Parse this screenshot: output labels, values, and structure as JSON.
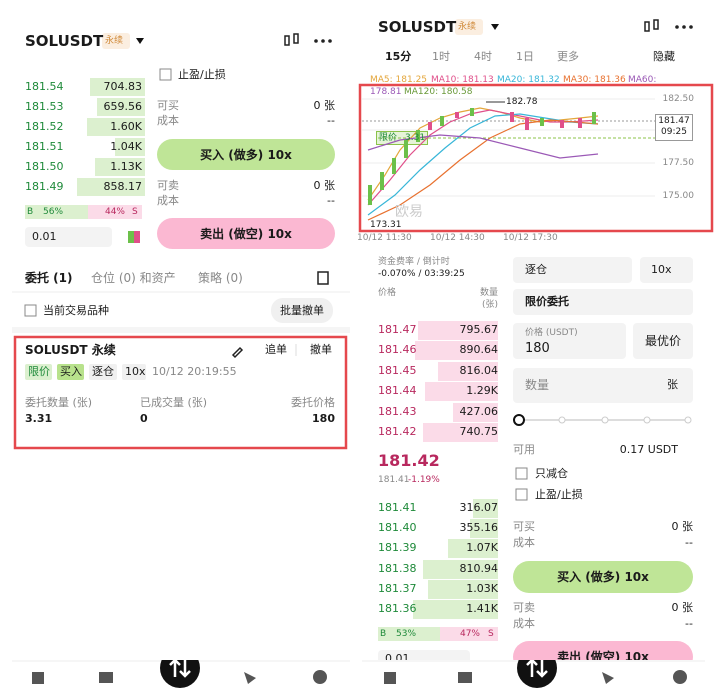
{
  "left": {
    "header": {
      "symbol": "SOLUSDT",
      "tag": "永续"
    },
    "orderbook": {
      "rows": [
        {
          "price": "181.54",
          "qty": "704.83"
        },
        {
          "price": "181.53",
          "qty": "659.56"
        },
        {
          "price": "181.52",
          "qty": "1.60K"
        },
        {
          "price": "181.51",
          "qty": "1.04K"
        },
        {
          "price": "181.50",
          "qty": "1.13K"
        },
        {
          "price": "181.49",
          "qty": "858.17"
        }
      ],
      "buy_label": "B",
      "buy_pct": "56%",
      "sell_pct": "44%",
      "sell_label": "S",
      "precision": "0.01"
    },
    "form": {
      "tpsl": "止盈/止损",
      "buy_avail_label": "可买",
      "buy_avail": "0 张",
      "buy_cost_label": "成本",
      "buy_cost": "--",
      "buy_button": "买入 (做多) 10x",
      "sell_avail_label": "可卖",
      "sell_avail": "0 张",
      "sell_cost_label": "成本",
      "sell_cost": "--",
      "sell_button": "卖出 (做空) 10x"
    },
    "tabs": [
      "委托 (1)",
      "仓位 (0) 和资产",
      "策略 (0)"
    ],
    "filter": "当前交易品种",
    "cancel_all": "批量撤单",
    "order": {
      "title": "SOLUSDT 永续",
      "chase": "追单",
      "cancel": "撤单",
      "tags": [
        "限价",
        "买入",
        "逐仓",
        "10x"
      ],
      "time": "10/12 20:19:55",
      "qty_label": "委托数量 (张)",
      "qty": "3.31",
      "filled_label": "已成交量 (张)",
      "filled": "0",
      "price_label": "委托价格",
      "price": "180"
    }
  },
  "right": {
    "header": {
      "symbol": "SOLUSDT",
      "tag": "永续"
    },
    "intervals": [
      "15分",
      "1时",
      "4时",
      "1日",
      "更多",
      "隐藏"
    ],
    "ma": {
      "ma5": "MA5: 181.25",
      "ma10": "MA10: 181.13",
      "ma20": "MA20: 181.32",
      "ma30": "MA30: 181.36",
      "ma60": "MA60:",
      "ma60_value": "178.81",
      "ma120": "MA120: 180.58"
    },
    "chart": {
      "price_labels": [
        "182.50",
        "177.50",
        "175.00"
      ],
      "last_price": "181.47",
      "countdown": "09:25",
      "high": "182.78",
      "low": "173.31",
      "order_tag": "限价",
      "order_qty": "3.31",
      "watermark": "欧易",
      "time_labels": [
        "10/12 11:30",
        "10/12 14:30",
        "10/12 17:30"
      ]
    },
    "funding": {
      "label": "资金费率 / 倒计时",
      "value": "-0.070% / 03:39:25"
    },
    "book_header": {
      "price": "价格",
      "qty": "数量",
      "qty_unit": "(张)"
    },
    "asks": [
      {
        "price": "181.47",
        "qty": "795.67"
      },
      {
        "price": "181.46",
        "qty": "890.64"
      },
      {
        "price": "181.45",
        "qty": "816.04"
      },
      {
        "price": "181.44",
        "qty": "1.29K"
      },
      {
        "price": "181.43",
        "qty": "427.06"
      },
      {
        "price": "181.42",
        "qty": "740.75"
      }
    ],
    "mid": {
      "price": "181.42",
      "index": "181.41",
      "change": "-1.19%"
    },
    "bids": [
      {
        "price": "181.41",
        "qty": "316.07"
      },
      {
        "price": "181.40",
        "qty": "355.16"
      },
      {
        "price": "181.39",
        "qty": "1.07K"
      },
      {
        "price": "181.38",
        "qty": "810.94"
      },
      {
        "price": "181.37",
        "qty": "1.03K"
      },
      {
        "price": "181.36",
        "qty": "1.41K"
      }
    ],
    "ratio": {
      "buy_label": "B",
      "buy_pct": "53%",
      "sell_pct": "47%",
      "sell_label": "S",
      "precision": "0.01"
    },
    "form": {
      "margin": "逐仓",
      "leverage": "10x",
      "order_type": "限价委托",
      "price_label": "价格 (USDT)",
      "price": "180",
      "best": "最优价",
      "qty_placeholder": "数量",
      "qty_unit": "张",
      "avail_label": "可用",
      "avail": "0.17 USDT",
      "reduce_only": "只减仓",
      "tpsl": "止盈/止损",
      "buy_avail_label": "可买",
      "buy_avail": "0 张",
      "buy_cost_label": "成本",
      "buy_cost": "--",
      "buy_button": "买入 (做多) 10x",
      "sell_avail_label": "可卖",
      "sell_avail": "0 张",
      "sell_cost_label": "成本",
      "sell_cost": "--",
      "sell_button": "卖出 (做空) 10x"
    }
  }
}
